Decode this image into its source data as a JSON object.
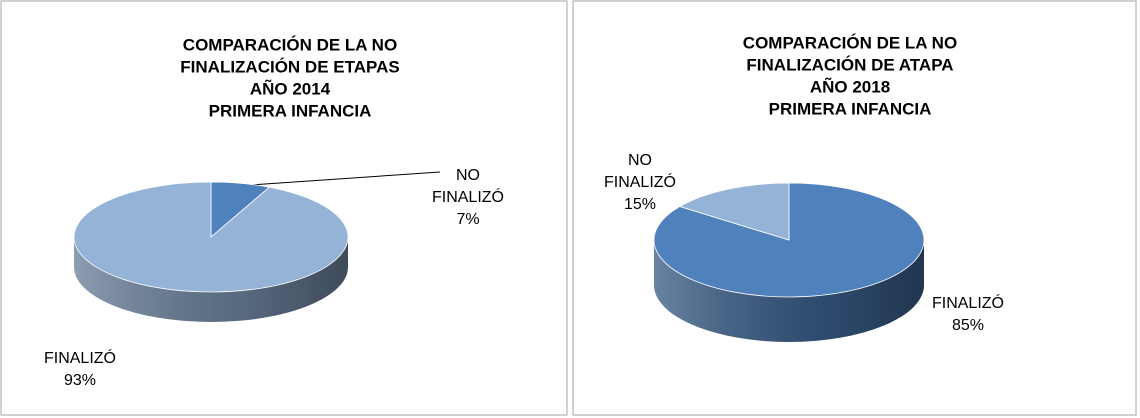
{
  "chart_data": [
    {
      "type": "pie",
      "title": [
        "COMPARACIÓN DE LA NO",
        "FINALIZACIÓN  DE ETAPAS",
        "AÑO 2014",
        "PRIMERA INFANCIA"
      ],
      "categories": [
        "NO FINALIZÓ",
        "FINALIZÓ"
      ],
      "values": [
        7,
        93
      ],
      "value_labels": [
        "7%",
        "93%"
      ],
      "colors": [
        "#4f81bd",
        "#95b3d7"
      ]
    },
    {
      "type": "pie",
      "title": [
        "COMPARACIÓN DE LA NO",
        "FINALIZACIÓN  DE ATAPA",
        "AÑO 2018",
        "PRIMERA INFANCIA"
      ],
      "categories": [
        "FINALIZÓ",
        "NO FINALIZÓ"
      ],
      "values": [
        85,
        15
      ],
      "value_labels": [
        "85%",
        "15%"
      ],
      "colors": [
        "#4f81bd",
        "#95b3d7"
      ]
    }
  ]
}
